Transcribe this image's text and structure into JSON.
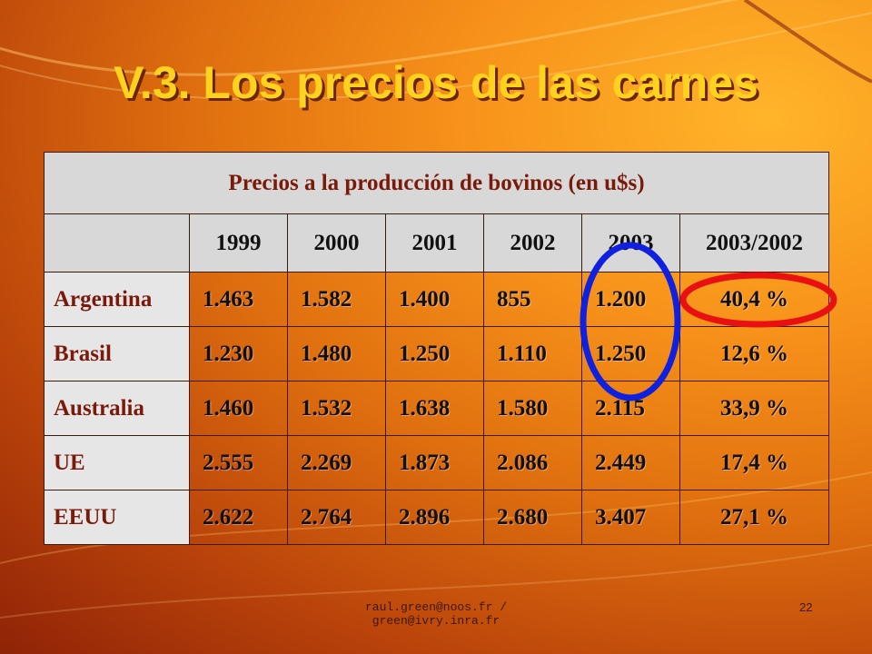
{
  "slide": {
    "title": "V.3. Los precios de las carnes",
    "footer": "raul.green@noos.fr / green@ivry.inra.fr",
    "page_number": "22"
  },
  "table": {
    "caption": "Precios a la producción de bovinos (en u$s)",
    "headers": [
      "1999",
      "2000",
      "2001",
      "2002",
      "2003",
      "2003/2002"
    ],
    "rows": [
      {
        "country": "Argentina",
        "values": [
          "1.463",
          "1.582",
          "1.400",
          "855",
          "1.200"
        ],
        "change": "40,4 %"
      },
      {
        "country": "Brasil",
        "values": [
          "1.230",
          "1.480",
          "1.250",
          "1.110",
          "1.250"
        ],
        "change": "12,6 %"
      },
      {
        "country": "Australia",
        "values": [
          "1.460",
          "1.532",
          "1.638",
          "1.580",
          "2.115"
        ],
        "change": "33,9 %"
      },
      {
        "country": "UE",
        "values": [
          "2.555",
          "2.269",
          "1.873",
          "2.086",
          "2.449"
        ],
        "change": "17,4 %"
      },
      {
        "country": "EEUU",
        "values": [
          "2.622",
          "2.764",
          "2.896",
          "2.680",
          "3.407"
        ],
        "change": "27,1 %"
      }
    ]
  },
  "colors": {
    "title": "#ffd21f",
    "highlight_column": "#1020e0",
    "highlight_cell": "#e81010"
  }
}
